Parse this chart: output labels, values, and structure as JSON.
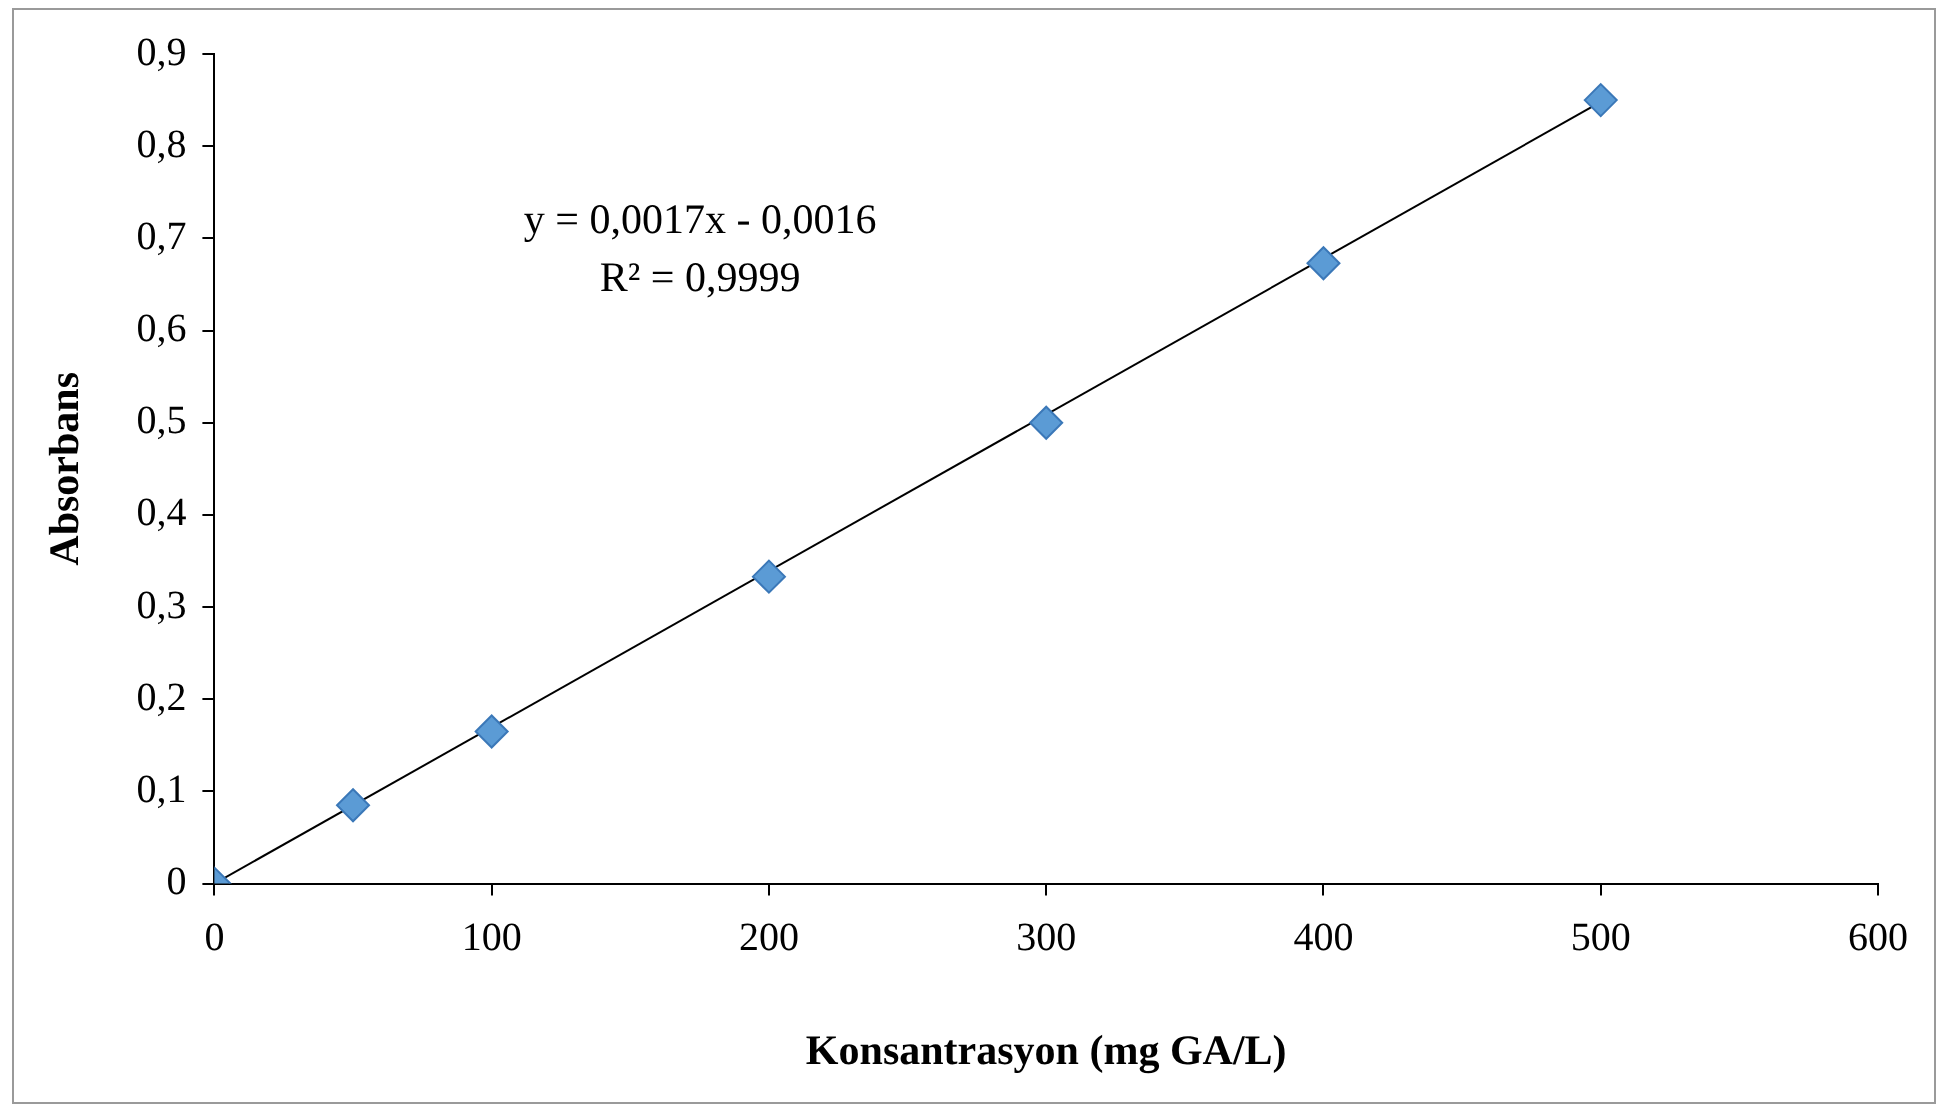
{
  "chart_data": {
    "type": "scatter",
    "xlabel": "Konsantrasyon (mg GA/L)",
    "ylabel": "Absorbans",
    "xlim": [
      0,
      600
    ],
    "xticks": [
      0,
      100,
      200,
      300,
      400,
      500,
      600
    ],
    "ylim": [
      0,
      0.9
    ],
    "yticks": [
      0,
      {
        "value": 0.1,
        "label": "0,1"
      },
      {
        "value": 0.2,
        "label": "0,2"
      },
      {
        "value": 0.3,
        "label": "0,3"
      },
      {
        "value": 0.4,
        "label": "0,4"
      },
      {
        "value": 0.5,
        "label": "0,5"
      },
      {
        "value": 0.6,
        "label": "0,6"
      },
      {
        "value": 0.7,
        "label": "0,7"
      },
      {
        "value": 0.8,
        "label": "0,8"
      },
      {
        "value": 0.9,
        "label": "0,9"
      }
    ],
    "x": [
      0,
      50,
      100,
      200,
      300,
      400,
      500
    ],
    "series": [
      {
        "color": "#5b9bd5",
        "values": [
          0,
          0.085,
          0.165,
          0.333,
          0.5,
          0.673,
          0.85
        ]
      },
      {
        "type": "line",
        "color": "#000000",
        "x": [
          0,
          500
        ],
        "values": [
          0,
          0.848
        ],
        "marker": "none"
      }
    ],
    "annotations": [
      "y = 0,0017x - 0,0016",
      "R² = 0,9999"
    ],
    "marker": "diamond",
    "grid": false,
    "legend": false
  }
}
